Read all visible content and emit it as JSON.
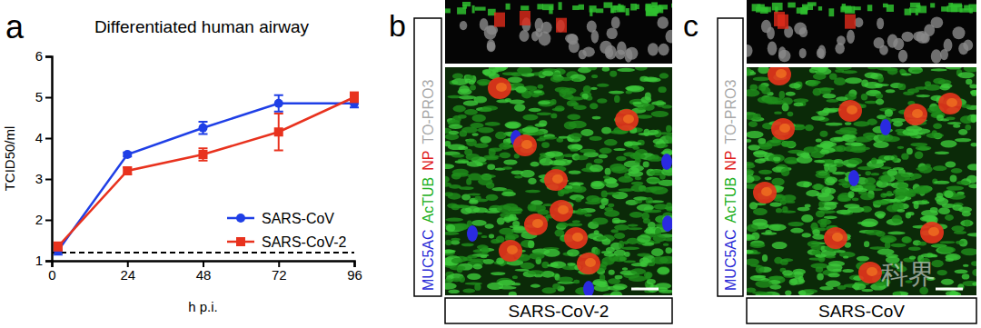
{
  "chart_data": {
    "type": "line",
    "title": "Differentiated human airway",
    "x_label": "h p.i.",
    "y_label": "TCID50/ml",
    "x": [
      2,
      24,
      48,
      72,
      96
    ],
    "xlim": [
      0,
      96
    ],
    "xticks": [
      0,
      24,
      48,
      72,
      96
    ],
    "ylim": [
      1,
      6
    ],
    "yticks": [
      1,
      2,
      3,
      4,
      5,
      6
    ],
    "reference_line": 1.2,
    "legend": "lower right",
    "grid": false,
    "series": [
      {
        "name": "SARS-CoV",
        "color": "#1f3fe6",
        "marker": "circle",
        "line_style": "solid",
        "values": [
          1.25,
          3.6,
          4.25,
          4.85,
          4.85
        ],
        "errors": [
          0.1,
          0.05,
          0.15,
          0.2,
          0.1
        ]
      },
      {
        "name": "SARS-CoV-2",
        "color": "#e8321e",
        "marker": "square",
        "line_style": "solid",
        "values": [
          1.35,
          3.2,
          3.6,
          4.15,
          5.0
        ],
        "errors": [
          0.1,
          0.08,
          0.15,
          0.45,
          0.12
        ]
      }
    ]
  },
  "figure": {
    "panel_labels": [
      "a",
      "b",
      "c"
    ],
    "images": [
      {
        "stain_labels": [
          {
            "text": "MUC5AC",
            "color": "#2b2bd6"
          },
          {
            "text": "AcTUB",
            "color": "#22b022"
          },
          {
            "text": "NP",
            "color": "#e02020"
          },
          {
            "text": "TO-PRO3",
            "color": "#a8a8a8"
          }
        ],
        "caption": "SARS-CoV-2"
      },
      {
        "stain_labels": [
          {
            "text": "MUC5AC",
            "color": "#2b2bd6"
          },
          {
            "text": "AcTUB",
            "color": "#22b022"
          },
          {
            "text": "NP",
            "color": "#e02020"
          },
          {
            "text": "TO-PRO3",
            "color": "#a8a8a8"
          }
        ],
        "caption": "SARS-CoV"
      }
    ],
    "watermark": "科界"
  }
}
